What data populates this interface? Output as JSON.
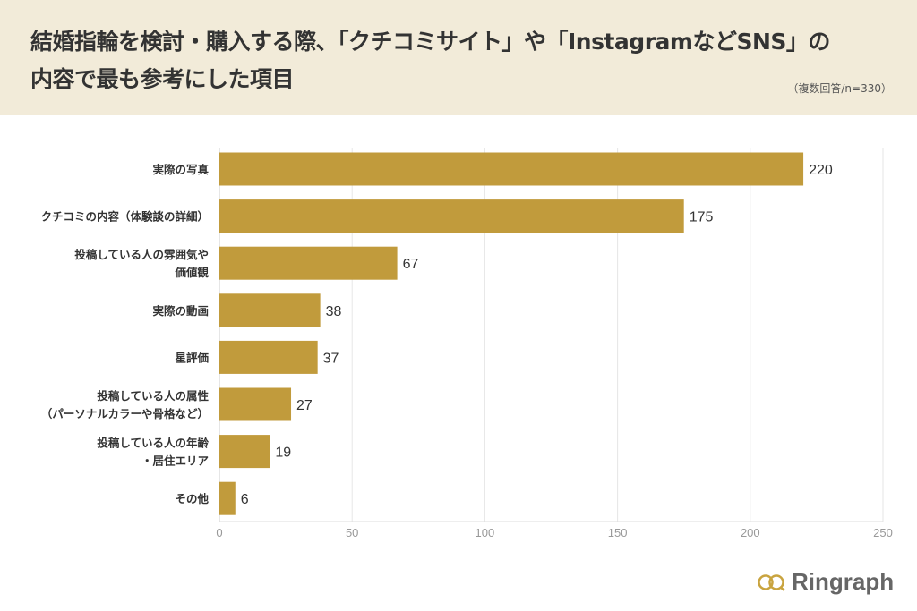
{
  "header": {
    "title_line1": "結婚指輪を検討・購入する際、「クチコミサイト」や「InstagramなどSNS」の",
    "title_line2": "内容で最も参考にした項目",
    "note": "（複数回答/n=330）"
  },
  "chart_data": {
    "type": "bar",
    "orientation": "horizontal",
    "title": "結婚指輪を検討・購入する際、「クチコミサイト」や「InstagramなどSNS」の内容で最も参考にした項目",
    "categories": [
      [
        "実際の写真"
      ],
      [
        "クチコミの内容（体験談の詳細）"
      ],
      [
        "投稿している人の雰囲気や",
        "価値観"
      ],
      [
        "実際の動画"
      ],
      [
        "星評価"
      ],
      [
        "投稿している人の属性",
        "（パーソナルカラーや骨格など）"
      ],
      [
        "投稿している人の年齢",
        "・居住エリア"
      ],
      [
        "その他"
      ]
    ],
    "values": [
      220,
      175,
      67,
      38,
      37,
      27,
      19,
      6
    ],
    "xlim": [
      0,
      250
    ],
    "xticks": [
      "0",
      "50",
      "100",
      "150",
      "200",
      "250"
    ],
    "grid": true,
    "bar_color": "#c19b3c"
  },
  "brand": {
    "name": "Ringraph",
    "color": "#c9a43f"
  }
}
